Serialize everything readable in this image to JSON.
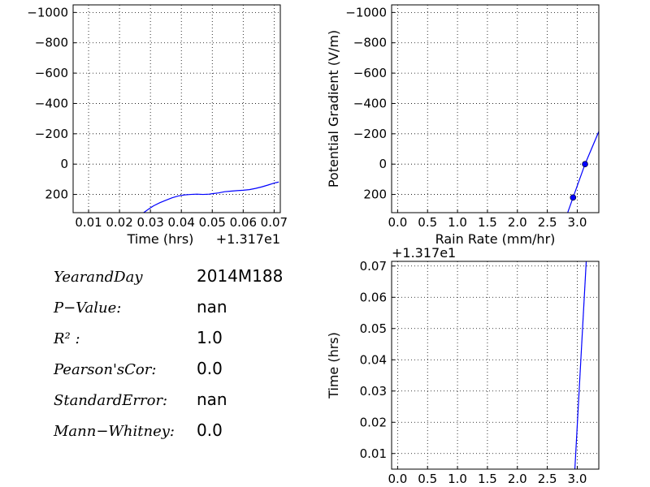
{
  "colors": {
    "series": "#0000ff"
  },
  "chart_data": [
    {
      "type": "line",
      "xlabel": "Time (hrs)",
      "x_offset_label": "+1.317e1",
      "ylabel": "",
      "x_ticks": [
        "0.01",
        "0.02",
        "0.03",
        "0.04",
        "0.05",
        "0.06",
        "0.07"
      ],
      "y_ticks": [
        "−1000",
        "−800",
        "−600",
        "−400",
        "−200",
        "0",
        "200"
      ],
      "xlim": [
        0.005,
        0.072
      ],
      "ylim": [
        320,
        -1050
      ],
      "y_inverted": true,
      "grid": true,
      "series": [
        {
          "x": [
            0.0278,
            0.0295,
            0.031,
            0.033,
            0.035,
            0.037,
            0.039,
            0.041,
            0.043,
            0.045,
            0.047,
            0.049,
            0.05,
            0.052,
            0.054,
            0.056,
            0.058,
            0.06,
            0.062,
            0.064,
            0.066,
            0.068,
            0.07,
            0.0715
          ],
          "y": [
            320,
            295,
            275,
            255,
            238,
            222,
            210,
            203,
            200,
            198,
            200,
            198,
            195,
            190,
            182,
            178,
            175,
            172,
            168,
            160,
            150,
            138,
            125,
            118
          ]
        }
      ]
    },
    {
      "type": "line",
      "xlabel": "Rain Rate (mm/hr)",
      "ylabel": "Potential Gradient (V/m)",
      "x_ticks": [
        "0.0",
        "0.5",
        "1.0",
        "1.5",
        "2.0",
        "2.5",
        "3.0"
      ],
      "y_ticks": [
        "−1000",
        "−800",
        "−600",
        "−400",
        "−200",
        "0",
        "200"
      ],
      "xlim": [
        -0.1,
        3.36
      ],
      "ylim": [
        320,
        -1050
      ],
      "y_inverted": true,
      "grid": true,
      "series": [
        {
          "x": [
            2.84,
            2.93,
            3.13,
            3.36
          ],
          "y": [
            320,
            220,
            0,
            -215
          ],
          "markers": [
            1,
            2
          ]
        }
      ]
    },
    {
      "type": "line",
      "xlabel": "",
      "ylabel": "Time (hrs)",
      "y_offset_label": "+1.317e1",
      "x_ticks": [
        "0.0",
        "0.5",
        "1.0",
        "1.5",
        "2.0",
        "2.5",
        "3.0"
      ],
      "y_ticks": [
        "0.01",
        "0.02",
        "0.03",
        "0.04",
        "0.05",
        "0.06",
        "0.07"
      ],
      "xlim": [
        -0.1,
        3.36
      ],
      "ylim": [
        0.005,
        0.0715
      ],
      "grid": true,
      "series": [
        {
          "x": [
            2.96,
            3.15
          ],
          "y": [
            0.005,
            0.0715
          ]
        }
      ]
    }
  ],
  "stats": [
    {
      "label": "YearandDay",
      "value": "2014M188"
    },
    {
      "label": "P−Value:",
      "value": "nan"
    },
    {
      "label": "R² :",
      "value": "1.0"
    },
    {
      "label": "Pearson'sCor:",
      "value": "0.0"
    },
    {
      "label": "StandardError:",
      "value": "nan"
    },
    {
      "label": "Mann−Whitney:",
      "value": "0.0"
    }
  ]
}
